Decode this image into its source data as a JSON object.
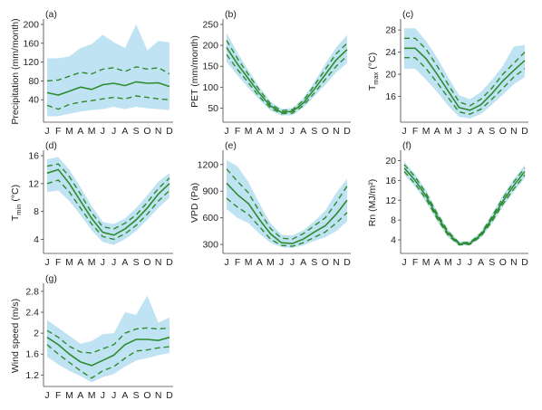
{
  "months": [
    "J",
    "F",
    "M",
    "A",
    "M",
    "J",
    "J",
    "A",
    "S",
    "O",
    "N",
    "D"
  ],
  "colors": {
    "band": "#bfe3f2",
    "line": "#2e8b2e",
    "axis": "#444444"
  },
  "chart_data": [
    {
      "type": "line",
      "panel": "(a)",
      "ylabel": "Precipitation (mm/month)",
      "ylim": [
        0,
        200
      ],
      "yticks": [
        40,
        80,
        120,
        160,
        200
      ],
      "categories": [
        "J",
        "F",
        "M",
        "A",
        "M",
        "J",
        "J",
        "A",
        "S",
        "O",
        "N",
        "D"
      ],
      "series": [
        {
          "role": "median",
          "style": "solid",
          "values": [
            55,
            50,
            58,
            67,
            62,
            72,
            75,
            70,
            78,
            75,
            76,
            68
          ]
        },
        {
          "role": "upper quartile",
          "style": "dashed",
          "values": [
            80,
            82,
            90,
            98,
            95,
            105,
            108,
            100,
            110,
            105,
            108,
            95
          ]
        },
        {
          "role": "lower quartile",
          "style": "dashed",
          "values": [
            28,
            20,
            30,
            35,
            38,
            42,
            45,
            42,
            48,
            45,
            42,
            40
          ]
        }
      ],
      "band": {
        "upper": [
          128,
          128,
          132,
          150,
          158,
          178,
          162,
          150,
          200,
          145,
          165,
          162
        ],
        "lower": [
          5,
          5,
          10,
          15,
          18,
          20,
          25,
          20,
          25,
          22,
          20,
          18
        ]
      }
    },
    {
      "type": "line",
      "panel": "(b)",
      "ylabel": "PET (mm/month)",
      "ylim": [
        25,
        250
      ],
      "yticks": [
        50,
        100,
        150,
        200,
        250
      ],
      "categories": [
        "J",
        "F",
        "M",
        "A",
        "M",
        "J",
        "J",
        "A",
        "S",
        "O",
        "N",
        "D"
      ],
      "series": [
        {
          "role": "median",
          "style": "solid",
          "values": [
            195,
            155,
            120,
            85,
            55,
            40,
            42,
            62,
            95,
            130,
            165,
            190
          ]
        },
        {
          "role": "upper quartile",
          "style": "dashed",
          "values": [
            212,
            168,
            130,
            93,
            60,
            44,
            46,
            68,
            104,
            142,
            180,
            205
          ]
        },
        {
          "role": "lower quartile",
          "style": "dashed",
          "values": [
            178,
            142,
            110,
            77,
            50,
            37,
            38,
            56,
            86,
            118,
            150,
            175
          ]
        }
      ],
      "band": {
        "upper": [
          230,
          182,
          140,
          100,
          66,
          48,
          50,
          74,
          112,
          155,
          195,
          225
        ],
        "lower": [
          160,
          128,
          98,
          70,
          44,
          32,
          33,
          50,
          78,
          105,
          135,
          158
        ]
      }
    },
    {
      "type": "line",
      "panel": "(c)",
      "ylabel": "T_max (°C)",
      "ylim": [
        12,
        29
      ],
      "yticks": [
        16,
        20,
        24,
        28
      ],
      "categories": [
        "J",
        "F",
        "M",
        "A",
        "M",
        "J",
        "J",
        "A",
        "S",
        "O",
        "N",
        "D"
      ],
      "series": [
        {
          "role": "median",
          "style": "solid",
          "values": [
            24.7,
            24.7,
            22.8,
            20.0,
            17.0,
            14.0,
            13.5,
            14.5,
            16.5,
            18.8,
            20.7,
            22.5
          ]
        },
        {
          "role": "upper quartile",
          "style": "dashed",
          "values": [
            26.5,
            26.5,
            24.5,
            21.5,
            18.2,
            15.0,
            14.3,
            15.5,
            17.5,
            20.0,
            22.0,
            24.0
          ]
        },
        {
          "role": "lower quartile",
          "style": "dashed",
          "values": [
            23.0,
            23.0,
            21.0,
            18.5,
            15.8,
            13.2,
            12.8,
            13.7,
            15.5,
            17.5,
            19.5,
            21.0
          ]
        }
      ],
      "band": {
        "upper": [
          28.3,
          28.3,
          26.0,
          23.0,
          19.5,
          16.2,
          15.5,
          16.8,
          19.0,
          21.5,
          25.0,
          25.3
        ],
        "lower": [
          21.0,
          21.0,
          19.0,
          16.8,
          14.3,
          12.3,
          12.0,
          12.8,
          14.5,
          16.3,
          18.2,
          19.5
        ]
      }
    },
    {
      "type": "line",
      "panel": "(d)",
      "ylabel": "T_min (°C)",
      "ylim": [
        2.5,
        16
      ],
      "yticks": [
        4,
        8,
        12,
        16
      ],
      "categories": [
        "J",
        "F",
        "M",
        "A",
        "M",
        "J",
        "J",
        "A",
        "S",
        "O",
        "N",
        "D"
      ],
      "series": [
        {
          "role": "median",
          "style": "solid",
          "values": [
            13.5,
            14.0,
            12.0,
            9.5,
            7.0,
            5.0,
            4.6,
            5.5,
            6.8,
            8.5,
            10.5,
            12.0
          ]
        },
        {
          "role": "upper quartile",
          "style": "dashed",
          "values": [
            14.5,
            14.8,
            13.0,
            10.5,
            7.8,
            5.8,
            5.5,
            6.3,
            7.5,
            9.3,
            11.3,
            12.8
          ]
        },
        {
          "role": "lower quartile",
          "style": "dashed",
          "values": [
            12.0,
            12.5,
            10.8,
            8.5,
            6.2,
            4.4,
            4.0,
            4.8,
            6.0,
            7.6,
            9.5,
            11.0
          ]
        }
      ],
      "band": {
        "upper": [
          15.5,
          15.8,
          14.0,
          11.5,
          8.8,
          6.5,
          6.2,
          7.0,
          8.5,
          10.3,
          12.3,
          13.5
        ],
        "lower": [
          10.8,
          11.0,
          9.5,
          7.5,
          5.3,
          3.6,
          3.2,
          4.0,
          5.2,
          6.8,
          8.5,
          10.0
        ]
      }
    },
    {
      "type": "line",
      "panel": "(e)",
      "ylabel": "VPD (Pa)",
      "ylim": [
        240,
        1300
      ],
      "yticks": [
        300,
        600,
        900,
        1200
      ],
      "categories": [
        "J",
        "F",
        "M",
        "A",
        "M",
        "J",
        "J",
        "A",
        "S",
        "O",
        "N",
        "D"
      ],
      "series": [
        {
          "role": "median",
          "style": "solid",
          "values": [
            990,
            860,
            760,
            580,
            420,
            320,
            310,
            360,
            440,
            510,
            640,
            800
          ]
        },
        {
          "role": "upper quartile",
          "style": "dashed",
          "values": [
            1150,
            1010,
            880,
            670,
            480,
            370,
            360,
            420,
            510,
            600,
            770,
            960
          ]
        },
        {
          "role": "lower quartile",
          "style": "dashed",
          "values": [
            820,
            720,
            640,
            500,
            360,
            290,
            280,
            320,
            380,
            440,
            540,
            660
          ]
        }
      ],
      "band": {
        "upper": [
          1250,
          1180,
          1000,
          760,
          540,
          410,
          400,
          460,
          560,
          680,
          880,
          1040
        ],
        "lower": [
          700,
          600,
          540,
          420,
          320,
          270,
          260,
          290,
          340,
          380,
          450,
          560
        ]
      }
    },
    {
      "type": "line",
      "panel": "(f)",
      "ylabel": "Rn (MJ/m²)",
      "ylim": [
        2,
        21
      ],
      "yticks": [
        4,
        8,
        12,
        16,
        20
      ],
      "categories": [
        "J",
        "F",
        "M",
        "A",
        "M",
        "J",
        "J",
        "A",
        "S",
        "O",
        "N",
        "D"
      ],
      "series": [
        {
          "role": "median",
          "style": "solid",
          "values": [
            18.5,
            16.0,
            12.8,
            8.8,
            5.3,
            3.2,
            3.3,
            5.0,
            8.2,
            11.8,
            15.0,
            17.8
          ]
        },
        {
          "role": "upper quartile",
          "style": "dashed",
          "values": [
            19.2,
            16.7,
            13.4,
            9.3,
            5.7,
            3.4,
            3.5,
            5.3,
            8.7,
            12.4,
            15.7,
            18.5
          ]
        },
        {
          "role": "lower quartile",
          "style": "dashed",
          "values": [
            17.8,
            15.3,
            12.2,
            8.3,
            4.9,
            3.0,
            3.1,
            4.7,
            7.7,
            11.2,
            14.3,
            17.1
          ]
        }
      ],
      "band": {
        "upper": [
          19.8,
          17.3,
          14.0,
          9.8,
          6.1,
          3.7,
          3.8,
          5.7,
          9.2,
          13.0,
          16.3,
          19.1
        ],
        "lower": [
          17.2,
          14.7,
          11.6,
          7.8,
          4.5,
          2.8,
          2.9,
          4.4,
          7.2,
          10.6,
          13.7,
          16.5
        ]
      }
    },
    {
      "type": "line",
      "panel": "(g)",
      "ylabel": "Wind speed (m/s)",
      "ylim": [
        1.05,
        2.85
      ],
      "yticks": [
        1.2,
        1.6,
        2.0,
        2.4,
        2.8
      ],
      "categories": [
        "J",
        "F",
        "M",
        "A",
        "M",
        "J",
        "J",
        "A",
        "S",
        "O",
        "N",
        "D"
      ],
      "series": [
        {
          "role": "median",
          "style": "solid",
          "values": [
            1.92,
            1.78,
            1.6,
            1.45,
            1.38,
            1.48,
            1.58,
            1.78,
            1.88,
            1.88,
            1.86,
            1.92
          ]
        },
        {
          "role": "upper quartile",
          "style": "dashed",
          "values": [
            2.05,
            1.92,
            1.75,
            1.64,
            1.62,
            1.7,
            1.78,
            2.0,
            2.08,
            2.1,
            2.08,
            2.1
          ]
        },
        {
          "role": "lower quartile",
          "style": "dashed",
          "values": [
            1.78,
            1.6,
            1.44,
            1.28,
            1.14,
            1.28,
            1.36,
            1.52,
            1.66,
            1.68,
            1.72,
            1.74
          ]
        }
      ],
      "band": {
        "upper": [
          2.25,
          2.1,
          1.95,
          1.8,
          1.85,
          1.98,
          2.0,
          2.4,
          2.35,
          2.72,
          2.2,
          2.3
        ],
        "lower": [
          1.55,
          1.4,
          1.28,
          1.18,
          1.06,
          1.16,
          1.22,
          1.36,
          1.48,
          1.52,
          1.58,
          1.62
        ]
      }
    }
  ]
}
